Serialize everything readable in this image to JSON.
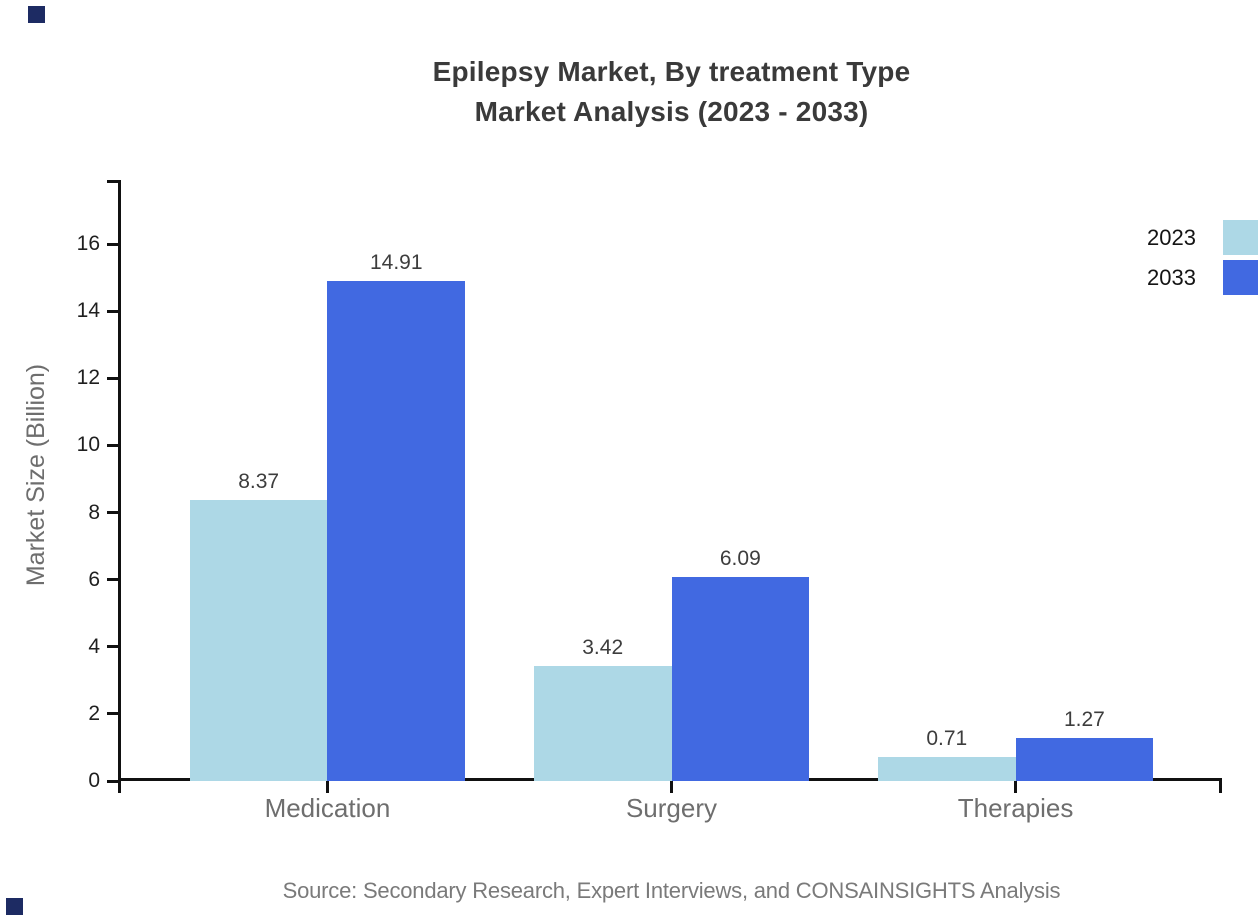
{
  "title": {
    "line1": "Epilepsy Market, By treatment Type",
    "line2": "Market Analysis (2023 - 2033)"
  },
  "source": "Source: Secondary Research, Expert Interviews, and CONSAINSIGHTS Analysis",
  "chart_data": {
    "type": "bar",
    "title": "Epilepsy Market, By treatment Type Market Analysis (2023 - 2033)",
    "categories": [
      "Medication",
      "Surgery",
      "Therapies"
    ],
    "series": [
      {
        "name": "2023",
        "color": "#ADD8E6",
        "values": [
          8.37,
          3.42,
          0.71
        ]
      },
      {
        "name": "2033",
        "color": "#4169E1",
        "values": [
          14.91,
          6.09,
          1.27
        ]
      }
    ],
    "xlabel": "",
    "ylabel": "Market Size (Billion)",
    "ylim": [
      0,
      17.9
    ],
    "yticks": [
      0,
      2,
      4,
      6,
      8,
      10,
      12,
      14,
      16
    ],
    "grid": false,
    "value_labels": true,
    "value_label_format": "2-decimals",
    "legend_position": "top-right"
  },
  "legend": {
    "items": [
      {
        "label": "2023",
        "color": "#ADD8E6"
      },
      {
        "label": "2033",
        "color": "#4169E1"
      }
    ]
  },
  "colors": {
    "brand_corner": "#1d2b63",
    "axis": "#111111",
    "bar_2023": "#ADD8E6",
    "bar_2033": "#4169E1",
    "title_text": "#3a3a3a",
    "muted_text": "#6e6e6e",
    "tick_text": "#1f1f1f",
    "value_text": "#3d3d3d",
    "source_text": "#7a7a7a"
  }
}
